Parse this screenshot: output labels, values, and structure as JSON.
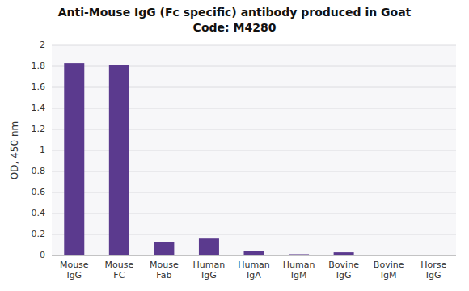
{
  "chart_data": {
    "type": "bar",
    "title": "Anti-Mouse IgG (Fc specific) antibody produced in Goat",
    "subtitle": "Code: M4280",
    "ylabel": "OD, 450 nm",
    "categories": [
      "Mouse\nIgG",
      "Mouse\nFC",
      "Mouse\nFab",
      "Human\nIgG",
      "Human\nIgA",
      "Human\nIgM",
      "Bovine\nIgG",
      "Bovine\nIgM",
      "Horse\nIgG"
    ],
    "values": [
      1.83,
      1.81,
      0.13,
      0.16,
      0.045,
      0.012,
      0.03,
      0.005,
      0.005
    ],
    "color": "#5B3A8E",
    "ylim": [
      0,
      2.0
    ],
    "yticks": [
      0,
      0.2,
      0.4,
      0.6,
      0.8,
      1.0,
      1.2,
      1.4,
      1.6,
      1.8,
      2.0
    ],
    "grid": true
  }
}
